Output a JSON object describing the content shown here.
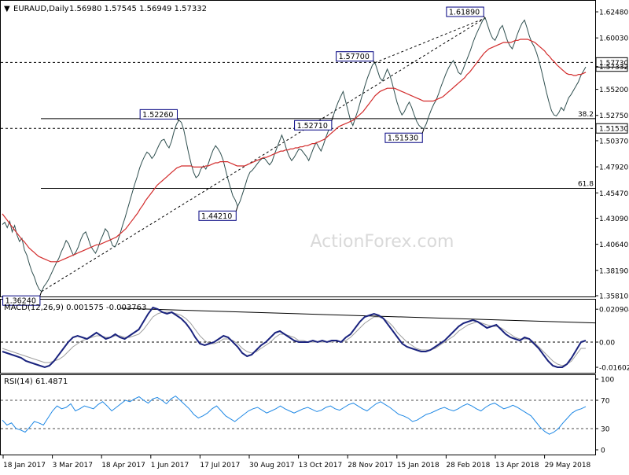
{
  "chart_data": [
    {
      "type": "line",
      "title": "EURAUD,Daily",
      "ohlc_readout": "1.56980 1.57545 1.56949 1.57332",
      "watermark": "ActionForex.com",
      "ylim": [
        1.3581,
        1.63
      ],
      "y_ticks": [
        "1.62480",
        "1.60030",
        "1.57332",
        "1.55200",
        "1.52750",
        "1.50370",
        "1.47920",
        "1.45470",
        "1.43090",
        "1.40640",
        "1.38190",
        "1.35810"
      ],
      "x_tick_labels": [
        "18 Jan 2017",
        "3 Mar 2017",
        "18 Apr 2017",
        "1 Jun 2017",
        "17 Jul 2017",
        "30 Aug 2017",
        "13 Oct 2017",
        "28 Nov 2017",
        "15 Jan 2018",
        "28 Feb 2018",
        "13 Apr 2018",
        "29 May 2018"
      ],
      "annotations": [
        "1.61890",
        "1.57700",
        "1.52260",
        "1.51530",
        "1.52710",
        "1.44210",
        "1.36240"
      ],
      "horizontal_levels": [
        {
          "label": "1.57730",
          "value": 1.5773,
          "style": "dashed"
        },
        {
          "label": "1.51530",
          "value": 1.5153,
          "style": "dashed"
        },
        {
          "label": "38.2",
          "value": 1.5244,
          "style": "solid"
        },
        {
          "label": "61.8",
          "value": 1.459,
          "style": "solid"
        }
      ],
      "current_price_label": "1.57332",
      "series": [
        {
          "name": "price",
          "color": "#2f4f4f",
          "values": [
            1.425,
            1.427,
            1.422,
            1.428,
            1.418,
            1.424,
            1.415,
            1.409,
            1.412,
            1.401,
            1.396,
            1.388,
            1.381,
            1.376,
            1.369,
            1.364,
            1.362,
            1.367,
            1.37,
            1.374,
            1.379,
            1.384,
            1.389,
            1.393,
            1.399,
            1.404,
            1.41,
            1.407,
            1.401,
            1.396,
            1.399,
            1.404,
            1.411,
            1.416,
            1.418,
            1.412,
            1.405,
            1.401,
            1.398,
            1.403,
            1.41,
            1.415,
            1.421,
            1.418,
            1.411,
            1.405,
            1.404,
            1.409,
            1.416,
            1.424,
            1.431,
            1.439,
            1.447,
            1.455,
            1.463,
            1.47,
            1.478,
            1.484,
            1.489,
            1.493,
            1.491,
            1.487,
            1.49,
            1.495,
            1.5,
            1.504,
            1.505,
            1.5,
            1.497,
            1.503,
            1.512,
            1.519,
            1.523,
            1.521,
            1.514,
            1.503,
            1.492,
            1.482,
            1.474,
            1.469,
            1.471,
            1.477,
            1.48,
            1.477,
            1.482,
            1.489,
            1.495,
            1.499,
            1.496,
            1.492,
            1.486,
            1.477,
            1.468,
            1.46,
            1.452,
            1.448,
            1.442,
            1.447,
            1.454,
            1.461,
            1.469,
            1.474,
            1.476,
            1.479,
            1.482,
            1.485,
            1.487,
            1.487,
            1.484,
            1.481,
            1.484,
            1.491,
            1.497,
            1.503,
            1.509,
            1.503,
            1.495,
            1.489,
            1.485,
            1.488,
            1.492,
            1.496,
            1.495,
            1.492,
            1.489,
            1.485,
            1.491,
            1.497,
            1.502,
            1.498,
            1.494,
            1.5,
            1.507,
            1.513,
            1.52,
            1.527,
            1.534,
            1.54,
            1.545,
            1.55,
            1.541,
            1.532,
            1.523,
            1.518,
            1.525,
            1.532,
            1.54,
            1.548,
            1.556,
            1.563,
            1.569,
            1.575,
            1.577,
            1.57,
            1.563,
            1.56,
            1.565,
            1.571,
            1.566,
            1.558,
            1.549,
            1.54,
            1.533,
            1.528,
            1.531,
            1.536,
            1.54,
            1.535,
            1.528,
            1.522,
            1.518,
            1.516,
            1.515,
            1.52,
            1.527,
            1.533,
            1.538,
            1.542,
            1.548,
            1.555,
            1.561,
            1.567,
            1.572,
            1.576,
            1.579,
            1.574,
            1.568,
            1.566,
            1.571,
            1.577,
            1.583,
            1.589,
            1.596,
            1.602,
            1.607,
            1.612,
            1.617,
            1.619,
            1.612,
            1.605,
            1.6,
            1.598,
            1.603,
            1.609,
            1.612,
            1.605,
            1.598,
            1.593,
            1.59,
            1.596,
            1.603,
            1.609,
            1.614,
            1.617,
            1.61,
            1.602,
            1.596,
            1.592,
            1.586,
            1.578,
            1.569,
            1.559,
            1.549,
            1.54,
            1.532,
            1.528,
            1.527,
            1.53,
            1.535,
            1.532,
            1.538,
            1.544,
            1.547,
            1.551,
            1.555,
            1.559,
            1.565,
            1.569,
            1.573
          ]
        },
        {
          "name": "SMA",
          "color": "#d22a2a",
          "values": [
            1.435,
            1.432,
            1.429,
            1.426,
            1.423,
            1.42,
            1.417,
            1.414,
            1.411,
            1.409,
            1.406,
            1.403,
            1.401,
            1.399,
            1.397,
            1.395,
            1.394,
            1.393,
            1.392,
            1.391,
            1.39,
            1.39,
            1.39,
            1.39,
            1.391,
            1.392,
            1.393,
            1.394,
            1.395,
            1.396,
            1.397,
            1.398,
            1.399,
            1.4,
            1.401,
            1.402,
            1.403,
            1.404,
            1.405,
            1.406,
            1.406,
            1.407,
            1.408,
            1.409,
            1.41,
            1.411,
            1.412,
            1.413,
            1.415,
            1.417,
            1.419,
            1.421,
            1.424,
            1.427,
            1.43,
            1.433,
            1.436,
            1.44,
            1.443,
            1.447,
            1.45,
            1.453,
            1.456,
            1.459,
            1.462,
            1.464,
            1.466,
            1.468,
            1.47,
            1.472,
            1.474,
            1.476,
            1.478,
            1.479,
            1.48,
            1.48,
            1.48,
            1.48,
            1.48,
            1.479,
            1.479,
            1.479,
            1.479,
            1.479,
            1.48,
            1.48,
            1.481,
            1.482,
            1.483,
            1.483,
            1.484,
            1.484,
            1.484,
            1.484,
            1.483,
            1.482,
            1.481,
            1.48,
            1.48,
            1.48,
            1.48,
            1.481,
            1.482,
            1.483,
            1.484,
            1.485,
            1.486,
            1.487,
            1.488,
            1.488,
            1.489,
            1.49,
            1.491,
            1.492,
            1.493,
            1.494,
            1.494,
            1.495,
            1.495,
            1.496,
            1.496,
            1.497,
            1.497,
            1.498,
            1.498,
            1.499,
            1.499,
            1.5,
            1.501,
            1.501,
            1.502,
            1.503,
            1.504,
            1.505,
            1.507,
            1.509,
            1.511,
            1.513,
            1.515,
            1.517,
            1.518,
            1.519,
            1.52,
            1.521,
            1.522,
            1.523,
            1.525,
            1.527,
            1.529,
            1.531,
            1.534,
            1.537,
            1.54,
            1.543,
            1.546,
            1.548,
            1.55,
            1.551,
            1.552,
            1.553,
            1.553,
            1.553,
            1.553,
            1.552,
            1.551,
            1.55,
            1.549,
            1.548,
            1.547,
            1.546,
            1.545,
            1.544,
            1.543,
            1.542,
            1.541,
            1.541,
            1.541,
            1.541,
            1.541,
            1.542,
            1.543,
            1.544,
            1.545,
            1.547,
            1.549,
            1.551,
            1.553,
            1.555,
            1.557,
            1.559,
            1.561,
            1.563,
            1.566,
            1.568,
            1.571,
            1.574,
            1.577,
            1.58,
            1.583,
            1.586,
            1.588,
            1.59,
            1.591,
            1.592,
            1.593,
            1.594,
            1.595,
            1.596,
            1.596,
            1.596,
            1.596,
            1.597,
            1.598,
            1.598,
            1.599,
            1.599,
            1.599,
            1.599,
            1.598,
            1.597,
            1.596,
            1.594,
            1.592,
            1.59,
            1.588,
            1.585,
            1.583,
            1.58,
            1.578,
            1.575,
            1.573,
            1.571,
            1.569,
            1.567,
            1.566,
            1.566,
            1.565,
            1.565,
            1.566,
            1.566,
            1.567,
            1.568
          ]
        }
      ]
    },
    {
      "type": "line",
      "title": "MACD(12,26,9) 0.001575 -0.003763",
      "ylim": [
        -0.0195,
        0.0245
      ],
      "y_ticks": [
        "0.020904",
        "0.00",
        "-0.016023"
      ],
      "series": [
        {
          "name": "MACD",
          "color": "#1a237e",
          "values": [
            -0.006,
            -0.007,
            -0.008,
            -0.009,
            -0.01,
            -0.012,
            -0.013,
            -0.014,
            -0.015,
            -0.016,
            -0.015,
            -0.012,
            -0.008,
            -0.004,
            0.0,
            0.003,
            0.004,
            0.003,
            0.002,
            0.004,
            0.006,
            0.004,
            0.002,
            0.003,
            0.005,
            0.003,
            0.002,
            0.004,
            0.006,
            0.008,
            0.013,
            0.018,
            0.022,
            0.021,
            0.019,
            0.018,
            0.019,
            0.017,
            0.015,
            0.012,
            0.008,
            0.003,
            -0.001,
            -0.002,
            -0.001,
            0.0,
            0.002,
            0.004,
            0.003,
            0.0,
            -0.003,
            -0.007,
            -0.009,
            -0.008,
            -0.005,
            -0.002,
            0.0,
            0.003,
            0.006,
            0.007,
            0.005,
            0.003,
            0.001,
            0.0,
            0.0,
            0.0,
            0.001,
            0.0,
            0.001,
            0.0,
            0.001,
            0.001,
            0.0,
            0.003,
            0.005,
            0.009,
            0.013,
            0.016,
            0.017,
            0.018,
            0.017,
            0.015,
            0.011,
            0.007,
            0.003,
            -0.001,
            -0.003,
            -0.004,
            -0.005,
            -0.006,
            -0.006,
            -0.005,
            -0.003,
            -0.001,
            0.001,
            0.004,
            0.007,
            0.01,
            0.012,
            0.013,
            0.014,
            0.013,
            0.011,
            0.009,
            0.01,
            0.011,
            0.008,
            0.005,
            0.003,
            0.002,
            0.001,
            0.003,
            0.002,
            -0.001,
            -0.004,
            -0.008,
            -0.012,
            -0.015,
            -0.016,
            -0.016,
            -0.014,
            -0.01,
            -0.005,
            0.0,
            0.001
          ]
        },
        {
          "name": "Signal",
          "color": "#9e9e9e",
          "values": [
            -0.004,
            -0.005,
            -0.006,
            -0.007,
            -0.008,
            -0.009,
            -0.01,
            -0.011,
            -0.012,
            -0.013,
            -0.013,
            -0.012,
            -0.011,
            -0.009,
            -0.006,
            -0.003,
            -0.001,
            0.001,
            0.002,
            0.003,
            0.004,
            0.004,
            0.003,
            0.003,
            0.004,
            0.004,
            0.003,
            0.003,
            0.004,
            0.005,
            0.008,
            0.012,
            0.016,
            0.018,
            0.019,
            0.019,
            0.019,
            0.018,
            0.017,
            0.015,
            0.012,
            0.008,
            0.004,
            0.001,
            -0.001,
            -0.001,
            0.0,
            0.002,
            0.002,
            0.001,
            -0.001,
            -0.004,
            -0.006,
            -0.007,
            -0.006,
            -0.004,
            -0.002,
            0.0,
            0.003,
            0.005,
            0.005,
            0.004,
            0.003,
            0.001,
            0.001,
            0.0,
            0.0,
            0.0,
            0.0,
            0.0,
            0.0,
            0.001,
            0.0,
            0.001,
            0.003,
            0.006,
            0.009,
            0.012,
            0.014,
            0.016,
            0.016,
            0.015,
            0.013,
            0.01,
            0.006,
            0.003,
            0.0,
            -0.002,
            -0.004,
            -0.005,
            -0.005,
            -0.005,
            -0.004,
            -0.002,
            0.0,
            0.002,
            0.004,
            0.007,
            0.009,
            0.011,
            0.012,
            0.013,
            0.012,
            0.011,
            0.01,
            0.01,
            0.009,
            0.007,
            0.005,
            0.003,
            0.002,
            0.002,
            0.002,
            0.0,
            -0.003,
            -0.006,
            -0.009,
            -0.012,
            -0.014,
            -0.015,
            -0.014,
            -0.012,
            -0.008,
            -0.004,
            -0.004
          ]
        }
      ],
      "trendline_label": ""
    },
    {
      "type": "line",
      "title": "RSI(14) 61.4871",
      "ylim": [
        0,
        100
      ],
      "y_ticks": [
        "100",
        "70",
        "30",
        "0"
      ],
      "series": [
        {
          "name": "RSI",
          "color": "#1e88e5",
          "values": [
            42,
            35,
            38,
            30,
            28,
            25,
            32,
            40,
            38,
            35,
            45,
            55,
            62,
            58,
            60,
            65,
            55,
            58,
            62,
            60,
            58,
            64,
            68,
            62,
            55,
            60,
            65,
            70,
            68,
            72,
            75,
            70,
            66,
            72,
            74,
            70,
            65,
            72,
            76,
            70,
            64,
            58,
            50,
            45,
            48,
            52,
            58,
            62,
            55,
            48,
            44,
            40,
            45,
            50,
            55,
            58,
            60,
            56,
            52,
            55,
            58,
            62,
            58,
            55,
            52,
            55,
            58,
            60,
            57,
            54,
            56,
            60,
            62,
            58,
            56,
            60,
            64,
            66,
            62,
            58,
            55,
            60,
            65,
            68,
            64,
            60,
            55,
            50,
            48,
            45,
            40,
            42,
            46,
            50,
            52,
            55,
            58,
            60,
            57,
            55,
            58,
            62,
            65,
            62,
            58,
            55,
            60,
            64,
            66,
            62,
            58,
            60,
            63,
            60,
            56,
            52,
            48,
            40,
            32,
            26,
            22,
            25,
            30,
            38,
            45,
            52,
            56,
            58,
            61
          ]
        }
      ]
    }
  ]
}
